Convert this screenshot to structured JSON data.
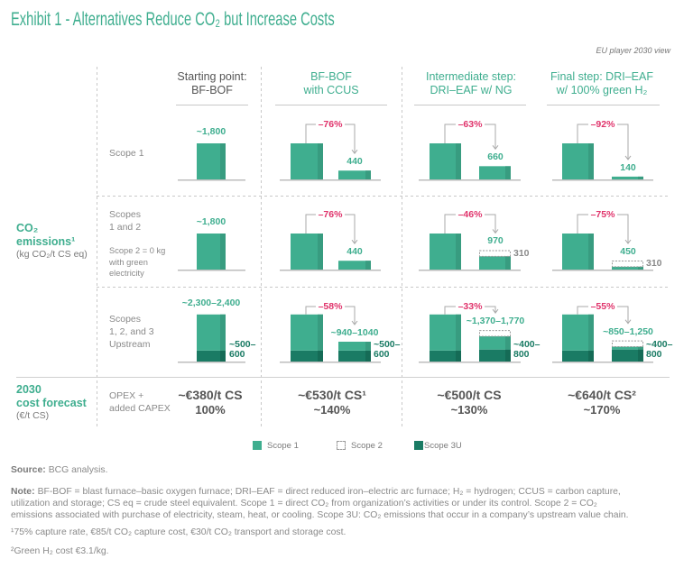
{
  "colors": {
    "accent": "#3fae8f",
    "accent_side": "#389c80",
    "scope3u": "#1a7b64",
    "scope3u_side": "#156b56",
    "decrease": "#e0336b",
    "scope2_outline": "#9a9a9a",
    "bracket": "#aaaaaa",
    "axis": "#bdbdbd"
  },
  "chart_data": {
    "type": "bar",
    "title": "Exhibit 1 - Alternatives Reduce CO₂ but Increase Costs",
    "subtitle": "EU player 2030 view",
    "ylabel": {
      "lines": [
        "CO₂",
        "emissions¹"
      ],
      "unit": "(kg CO₂/t CS eq)"
    },
    "categories": [
      {
        "lines": [
          "Starting point:",
          "BF-BOF"
        ]
      },
      {
        "lines": [
          "BF-BOF",
          "with CCUS"
        ]
      },
      {
        "lines": [
          "Intermediate step:",
          "DRI–EAF w/ NG"
        ]
      },
      {
        "lines": [
          "Final step: DRI–EAF",
          "w/ 100% green H₂"
        ]
      }
    ],
    "legend": [
      {
        "name": "Scope 1",
        "style": "solid"
      },
      {
        "name": "Scope 2",
        "style": "dashed-outline"
      },
      {
        "name": "Scope 3U",
        "style": "solid-dark"
      }
    ],
    "rows": [
      {
        "label": [
          "Scope 1"
        ],
        "note": [],
        "baseline": {
          "scope1": 1800,
          "scope2": 0,
          "scope3u": 0,
          "label": "~1,800"
        },
        "alternatives": [
          {
            "change": "–76%",
            "scope1": 440,
            "scope2": 0,
            "scope3u": 0,
            "label": "440"
          },
          {
            "change": "–63%",
            "scope1": 660,
            "scope2": 0,
            "scope3u": 0,
            "label": "660"
          },
          {
            "change": "–92%",
            "scope1": 140,
            "scope2": 0,
            "scope3u": 0,
            "label": "140"
          }
        ]
      },
      {
        "label": [
          "Scopes",
          "1 and 2"
        ],
        "note": [
          "Scope 2 = 0 kg",
          "with green",
          "electricity"
        ],
        "baseline": {
          "scope1": 1800,
          "scope2": 0,
          "scope3u": 0,
          "label": "~1,800"
        },
        "alternatives": [
          {
            "change": "–76%",
            "scope1": 440,
            "scope2": 0,
            "scope3u": 0,
            "label": "440"
          },
          {
            "change": "–46%",
            "scope1": 660,
            "scope2": 310,
            "scope3u": 0,
            "label": "970",
            "scope2_label": "310"
          },
          {
            "change": "–75%",
            "scope1": 140,
            "scope2": 310,
            "scope3u": 0,
            "label": "450",
            "scope2_label": "310"
          }
        ]
      },
      {
        "label": [
          "Scopes",
          "1, 2, and 3",
          "Upstream"
        ],
        "note": [],
        "baseline": {
          "scope1": 1800,
          "scope2": 0,
          "scope3u": 550,
          "total_range": [
            2300,
            2400
          ],
          "scope3u_range": [
            500,
            600
          ],
          "label": "~2,300–2,400",
          "scope3u_label": "~500–600"
        },
        "alternatives": [
          {
            "change": "–58%",
            "scope1": 440,
            "scope2": 0,
            "scope3u": 550,
            "total_range": [
              940,
              1040
            ],
            "scope3u_range": [
              500,
              600
            ],
            "label": "~940–1040",
            "scope3u_label": "~500–600"
          },
          {
            "change": "–33%",
            "scope1": 660,
            "scope2": 310,
            "scope3u": 600,
            "total_range": [
              1370,
              1770
            ],
            "scope3u_range": [
              400,
              800
            ],
            "label": "~1,370–1,770",
            "scope3u_label": "~400–800"
          },
          {
            "change": "–55%",
            "scope1": 140,
            "scope2": 310,
            "scope3u": 600,
            "total_range": [
              850,
              1250
            ],
            "scope3u_range": [
              400,
              800
            ],
            "label": "~850–1,250",
            "scope3u_label": "~400–800"
          }
        ]
      }
    ],
    "cost_forecast": {
      "title": [
        "2030",
        "cost forecast"
      ],
      "unit": "(€/t CS)",
      "row_label": [
        "OPEX +",
        "added CAPEX"
      ],
      "values": [
        {
          "value": "~€380/t CS",
          "eur_per_t": 380,
          "pct": "100%"
        },
        {
          "value": "~€530/t CS¹",
          "eur_per_t": 530,
          "pct": "~140%"
        },
        {
          "value": "~€500/t CS",
          "eur_per_t": 500,
          "pct": "~130%"
        },
        {
          "value": "~€640/t CS²",
          "eur_per_t": 640,
          "pct": "~170%"
        }
      ]
    }
  },
  "footer": {
    "source": {
      "label": "Source:",
      "text": "BCG analysis."
    },
    "note": {
      "label": "Note:",
      "lines": [
        "BF-BOF = blast furnace–basic oxygen furnace; DRI–EAF = direct reduced iron–electric arc furnace; H₂ = hydrogen; CCUS = carbon capture,",
        "utilization and storage; CS eq = crude steel equivalent. Scope 1 = direct CO₂ from organization’s activities or under its control. Scope 2 = CO₂",
        "emissions associated with purchase of electricity, steam, heat, or cooling. Scope 3U: CO₂ emissions that occur in a company’s upstream value chain."
      ]
    },
    "footnotes": [
      "¹75% capture rate, €85/t CO₂ capture cost, €30/t CO₂ transport and storage cost.",
      "²Green H₂ cost €3.1/kg."
    ]
  }
}
